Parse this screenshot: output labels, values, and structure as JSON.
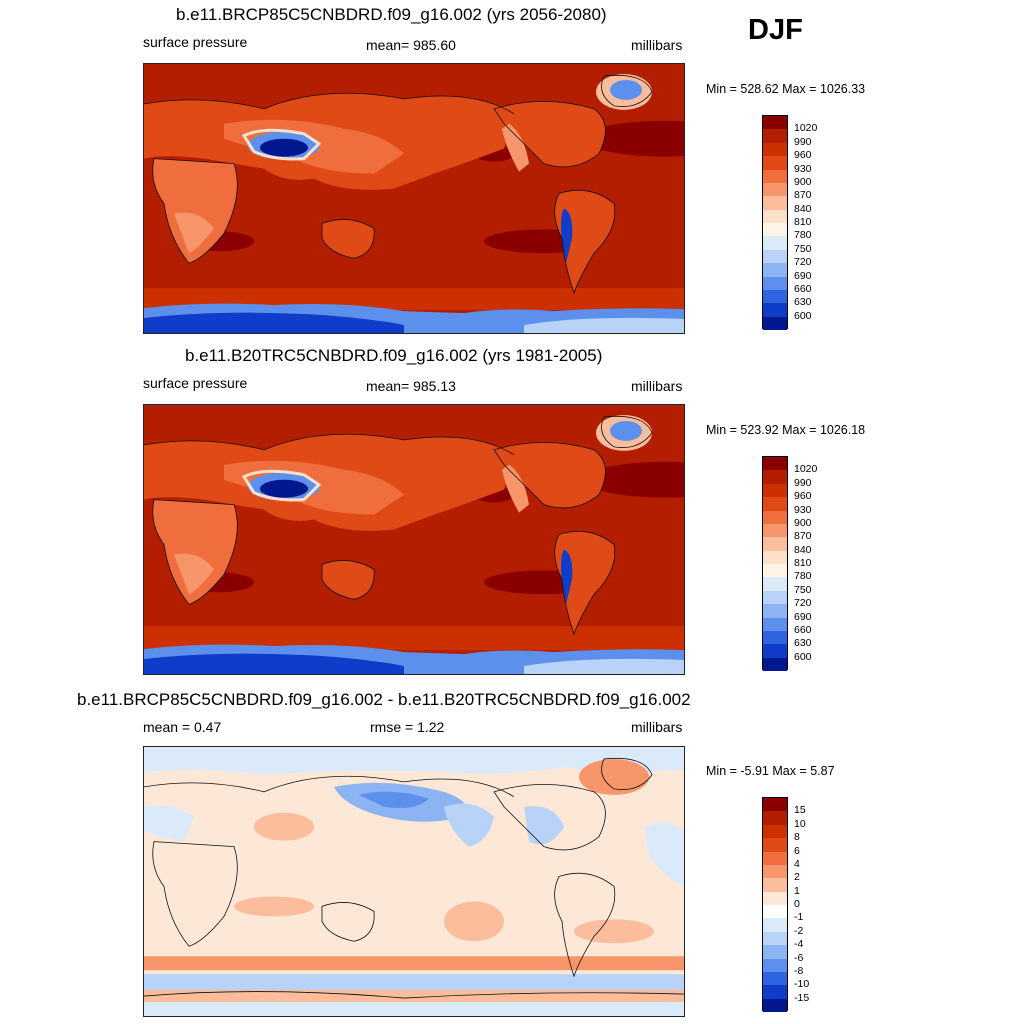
{
  "season": "DJF",
  "panels": [
    {
      "id": "top",
      "title": "b.e11.BRCP85C5CNBDRD.f09_g16.002 (yrs 2056-2080)",
      "left_label": "surface pressure",
      "center_label": "mean= 985.60",
      "units": "millibars",
      "minmax": "Min = 528.62 Max = 1026.33",
      "colorbar": {
        "labels": [
          "1020",
          "990",
          "960",
          "930",
          "900",
          "870",
          "840",
          "810",
          "780",
          "750",
          "720",
          "690",
          "660",
          "630",
          "600"
        ],
        "colors": [
          "#8a0000",
          "#b31d00",
          "#cc3000",
          "#e04a16",
          "#f06d3d",
          "#f7966a",
          "#fbbd9c",
          "#fde0c9",
          "#fdf3e6",
          "#dbeaf9",
          "#b8d3f7",
          "#8db4f2",
          "#5d90ec",
          "#2f64e0",
          "#0f3cc8",
          "#00178f"
        ]
      }
    },
    {
      "id": "middle",
      "title": "b.e11.B20TRC5CNBDRD.f09_g16.002 (yrs 1981-2005)",
      "left_label": "surface pressure",
      "center_label": "mean= 985.13",
      "units": "millibars",
      "minmax": "Min = 523.92 Max = 1026.18",
      "colorbar": {
        "labels": [
          "1020",
          "990",
          "960",
          "930",
          "900",
          "870",
          "840",
          "810",
          "780",
          "750",
          "720",
          "690",
          "660",
          "630",
          "600"
        ],
        "colors": [
          "#8a0000",
          "#b31d00",
          "#cc3000",
          "#e04a16",
          "#f06d3d",
          "#f7966a",
          "#fbbd9c",
          "#fde0c9",
          "#fdf3e6",
          "#dbeaf9",
          "#b8d3f7",
          "#8db4f2",
          "#5d90ec",
          "#2f64e0",
          "#0f3cc8",
          "#00178f"
        ]
      }
    },
    {
      "id": "bottom",
      "title": "b.e11.BRCP85C5CNBDRD.f09_g16.002 - b.e11.B20TRC5CNBDRD.f09_g16.002",
      "left_label": "mean =   0.47",
      "center_label": "rmse =   1.22",
      "units": "millibars",
      "minmax": "Min =  -5.91 Max =   5.87",
      "colorbar": {
        "labels": [
          "15",
          "10",
          "8",
          "6",
          "4",
          "2",
          "1",
          "0",
          "-1",
          "-2",
          "-4",
          "-6",
          "-8",
          "-10",
          "-15"
        ],
        "colors": [
          "#8a0000",
          "#b31d00",
          "#cc3000",
          "#e04a16",
          "#f06d3d",
          "#f7966a",
          "#fbbd9c",
          "#fde8d8",
          "#ffffff",
          "#dbeaf9",
          "#b8d3f7",
          "#8db4f2",
          "#5d90ec",
          "#2f64e0",
          "#0f3cc8",
          "#00178f"
        ]
      }
    }
  ]
}
